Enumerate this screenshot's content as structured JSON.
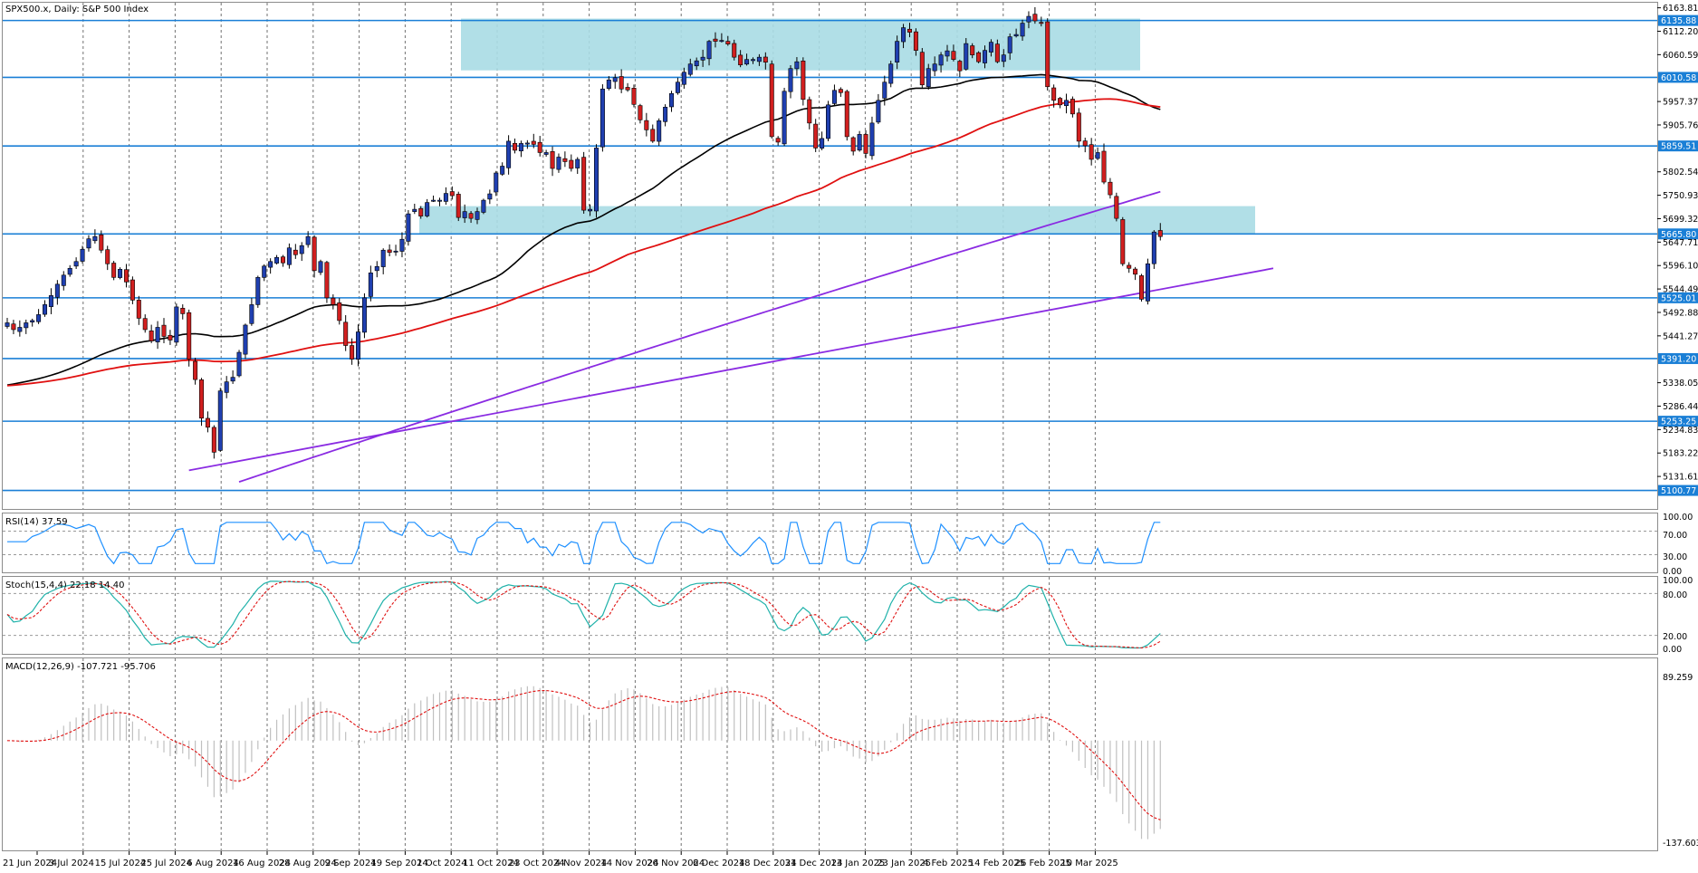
{
  "chart_data": {
    "type": "candlestick",
    "title": "SPX500.x, Daily: S&P 500 Index",
    "price_axis": {
      "range": [
        5060,
        6175
      ],
      "ticks": [
        6163.81,
        6112.2,
        6060.59,
        5957.37,
        5905.76,
        5802.54,
        5750.93,
        5699.32,
        5647.71,
        5596.1,
        5544.49,
        5492.88,
        5441.27,
        5338.05,
        5286.44,
        5234.83,
        5183.22,
        5131.61
      ]
    },
    "dates": [
      "21 Jun 2024",
      "3 Jul 2024",
      "15 Jul 2024",
      "25 Jul 2024",
      "6 Aug 2024",
      "16 Aug 2024",
      "28 Aug 2024",
      "9 Sep 2024",
      "19 Sep 2024",
      "1 Oct 2024",
      "11 Oct 2024",
      "23 Oct 2024",
      "4 Nov 2024",
      "14 Nov 2024",
      "26 Nov 2024",
      "6 Dec 2024",
      "18 Dec 2024",
      "31 Dec 2024",
      "13 Jan 2025",
      "23 Jan 2025",
      "4 Feb 2025",
      "14 Feb 2025",
      "26 Feb 2025",
      "10 Mar 2025"
    ],
    "horizontal_levels": [
      {
        "label": "6135.88",
        "value": 6135.88
      },
      {
        "label": "6010.58",
        "value": 6010.58
      },
      {
        "label": "5859.51",
        "value": 5859.51
      },
      {
        "label": "5665.80",
        "value": 5665.8
      },
      {
        "label": "5525.01",
        "value": 5525.01
      },
      {
        "label": "5391.20",
        "value": 5391.2
      },
      {
        "label": "5253.25",
        "value": 5253.25
      },
      {
        "label": "5100.77",
        "value": 5100.77
      }
    ],
    "zones": [
      {
        "from_date": "1 Oct 2024",
        "to_date": "10 Mar 2025",
        "low": 6026,
        "high": 6140
      },
      {
        "from_date": "19 Sep 2024",
        "to_date": "10 Mar 2025",
        "low": 5667,
        "high": 5727
      }
    ],
    "closes": [
      5470,
      5455,
      5460,
      5470,
      5475,
      5488,
      5510,
      5530,
      5555,
      5575,
      5590,
      5605,
      5632,
      5655,
      5660,
      5630,
      5600,
      5570,
      5588,
      5560,
      5520,
      5480,
      5455,
      5430,
      5460,
      5440,
      5432,
      5505,
      5490,
      5390,
      5345,
      5260,
      5240,
      5185,
      5320,
      5340,
      5350,
      5405,
      5465,
      5510,
      5570,
      5595,
      5605,
      5614,
      5602,
      5635,
      5620,
      5640,
      5660,
      5585,
      5605,
      5525,
      5510,
      5475,
      5420,
      5390,
      5450,
      5525,
      5580,
      5594,
      5630,
      5625,
      5628,
      5654,
      5710,
      5720,
      5705,
      5735,
      5740,
      5740,
      5755,
      5750,
      5702,
      5715,
      5700,
      5715,
      5740,
      5754,
      5800,
      5815,
      5870,
      5850,
      5865,
      5866,
      5863,
      5845,
      5845,
      5810,
      5835,
      5825,
      5810,
      5830,
      5718,
      5720,
      5855,
      5985,
      6005,
      6010,
      5985,
      5983,
      5951,
      5917,
      5895,
      5870,
      5915,
      5945,
      5975,
      6000,
      6022,
      6040,
      6047,
      6055,
      6090,
      6090,
      6092,
      6084,
      6055,
      6038,
      6050,
      6050,
      6055,
      6044,
      5880,
      5868,
      5980,
      6030,
      6045,
      5962,
      5910,
      5855,
      5876,
      5950,
      5982,
      5977,
      5880,
      5848,
      5885,
      5843,
      5910,
      5960,
      6000,
      6040,
      6090,
      6120,
      6110,
      6070,
      5994,
      6030,
      6040,
      6060,
      6069,
      6050,
      6025,
      6085,
      6060,
      6045,
      6070,
      6088,
      6045,
      6060,
      6100,
      6105,
      6130,
      6145,
      6135,
      6130,
      5990,
      5960,
      5950,
      5960,
      5930,
      5870,
      5860,
      5830,
      5845,
      5780,
      5752,
      5700,
      5600,
      5590,
      5577,
      5522,
      5600,
      5670,
      5660
    ]
  }
}
